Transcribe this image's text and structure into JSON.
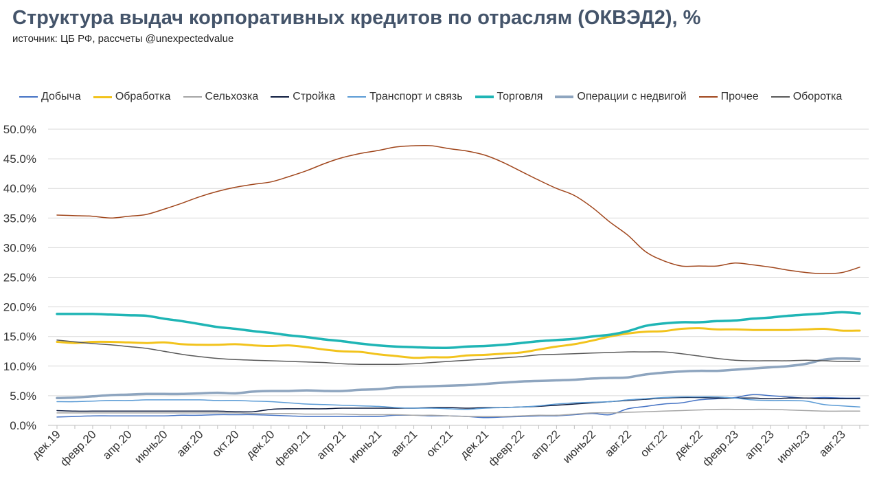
{
  "title": "Структура выдач корпоративных кредитов по отраслям (ОКВЭД2), %",
  "subtitle": "источник: ЦБ РФ, рассчеты @unexpectedvalue",
  "chart_data": {
    "type": "line",
    "title": "Структура выдач корпоративных кредитов по отраслям (ОКВЭД2), %",
    "subtitle": "источник: ЦБ РФ, рассчеты @unexpectedvalue",
    "xlabel": "",
    "ylabel": "",
    "ylim": [
      0,
      50
    ],
    "y_ticks": [
      0,
      5,
      10,
      15,
      20,
      25,
      30,
      35,
      40,
      45,
      50
    ],
    "y_tick_labels": [
      "0.0%",
      "5.0%",
      "10.0%",
      "15.0%",
      "20.0%",
      "25.0%",
      "30.0%",
      "35.0%",
      "40.0%",
      "45.0%",
      "50.0%"
    ],
    "grid": true,
    "legend_position": "top",
    "x": [
      "дек.19",
      "янв.20",
      "февр.20",
      "март.20",
      "апр.20",
      "май.20",
      "июнь20",
      "июль.20",
      "авг.20",
      "сент.20",
      "окт.20",
      "нояб.20",
      "дек.20",
      "янв.21",
      "февр.21",
      "март.21",
      "апр.21",
      "май.21",
      "июнь21",
      "июль.21",
      "авг.21",
      "сент.21",
      "окт.21",
      "нояб.21",
      "дек.21",
      "янв.22",
      "февр.22",
      "март.22",
      "апр.22",
      "май.22",
      "июнь22",
      "июль.22",
      "авг.22",
      "сент.22",
      "окт.22",
      "нояб.22",
      "дек.22",
      "янв.23",
      "февр.23",
      "март.23",
      "апр.23",
      "май.23",
      "июнь23",
      "июль.23",
      "авг.23",
      "сент.23"
    ],
    "x_tick_labels": [
      "дек.19",
      "февр.20",
      "апр.20",
      "июнь20",
      "авг.20",
      "окт.20",
      "дек.20",
      "февр.21",
      "апр.21",
      "июнь21",
      "авг.21",
      "окт.21",
      "дек.21",
      "февр.22",
      "апр.22",
      "июнь22",
      "авг.22",
      "окт.22",
      "дек.22",
      "февр.23",
      "апр.23",
      "июнь23",
      "авг.23"
    ],
    "series": [
      {
        "name": "Добыча",
        "color": "#4472c4",
        "width": 1.5,
        "values": [
          1.4,
          1.5,
          1.6,
          1.6,
          1.6,
          1.6,
          1.6,
          1.7,
          1.7,
          1.8,
          1.8,
          1.8,
          1.7,
          1.6,
          1.5,
          1.5,
          1.5,
          1.5,
          1.5,
          1.7,
          1.7,
          1.6,
          1.6,
          1.5,
          1.3,
          1.4,
          1.5,
          1.6,
          1.6,
          1.8,
          2.0,
          1.8,
          2.8,
          3.2,
          3.6,
          3.8,
          4.3,
          4.5,
          4.7,
          5.2,
          5.0,
          4.8,
          4.6,
          4.7,
          4.6,
          4.6
        ]
      },
      {
        "name": "Обработка",
        "color": "#f2c31c",
        "width": 3,
        "values": [
          14.1,
          13.9,
          14.1,
          14.1,
          14.0,
          13.9,
          14.0,
          13.7,
          13.6,
          13.6,
          13.7,
          13.5,
          13.4,
          13.5,
          13.2,
          12.8,
          12.5,
          12.4,
          12.0,
          11.7,
          11.4,
          11.5,
          11.5,
          11.8,
          11.9,
          12.1,
          12.3,
          12.8,
          13.3,
          13.7,
          14.3,
          15.0,
          15.5,
          15.8,
          15.9,
          16.3,
          16.4,
          16.2,
          16.2,
          16.1,
          16.1,
          16.1,
          16.2,
          16.3,
          16.0,
          16.0
        ]
      },
      {
        "name": "Сельхозка",
        "color": "#a5a5a5",
        "width": 1.5,
        "values": [
          2.1,
          2.1,
          2.1,
          2.1,
          2.1,
          2.1,
          2.1,
          2.1,
          2.1,
          2.1,
          2.1,
          2.0,
          2.0,
          2.0,
          1.9,
          1.9,
          1.9,
          1.8,
          1.8,
          1.8,
          1.7,
          1.7,
          1.6,
          1.5,
          1.5,
          1.5,
          1.6,
          1.7,
          1.7,
          1.9,
          2.1,
          2.1,
          2.2,
          2.3,
          2.4,
          2.5,
          2.6,
          2.7,
          2.7,
          2.7,
          2.7,
          2.6,
          2.5,
          2.4,
          2.4,
          2.4
        ]
      },
      {
        "name": "Стройка",
        "color": "#0d1b3e",
        "width": 1.5,
        "values": [
          2.5,
          2.4,
          2.4,
          2.4,
          2.4,
          2.4,
          2.4,
          2.4,
          2.4,
          2.4,
          2.3,
          2.3,
          2.7,
          2.8,
          2.8,
          2.8,
          2.9,
          2.9,
          2.9,
          2.9,
          2.9,
          3.0,
          3.0,
          2.9,
          3.0,
          3.0,
          3.1,
          3.2,
          3.4,
          3.6,
          3.8,
          4.0,
          4.2,
          4.4,
          4.6,
          4.7,
          4.7,
          4.6,
          4.6,
          4.6,
          4.5,
          4.6,
          4.6,
          4.5,
          4.5,
          4.5
        ]
      },
      {
        "name": "Транспорт и связь",
        "color": "#5b9bd5",
        "width": 1.5,
        "values": [
          4.0,
          4.0,
          4.1,
          4.2,
          4.2,
          4.3,
          4.3,
          4.3,
          4.3,
          4.2,
          4.2,
          4.1,
          4.0,
          3.8,
          3.6,
          3.5,
          3.4,
          3.3,
          3.2,
          3.0,
          2.9,
          2.9,
          2.8,
          2.7,
          2.9,
          3.0,
          3.1,
          3.3,
          3.6,
          3.8,
          3.9,
          4.0,
          4.3,
          4.5,
          4.7,
          4.8,
          4.8,
          4.8,
          4.6,
          4.3,
          4.2,
          4.2,
          4.1,
          3.5,
          3.3,
          3.1
        ]
      },
      {
        "name": "Торговля",
        "color": "#1fb5b5",
        "width": 3.5,
        "values": [
          18.8,
          18.8,
          18.8,
          18.7,
          18.6,
          18.5,
          18.0,
          17.6,
          17.1,
          16.6,
          16.3,
          15.9,
          15.6,
          15.2,
          14.9,
          14.5,
          14.2,
          13.8,
          13.5,
          13.3,
          13.2,
          13.1,
          13.1,
          13.3,
          13.4,
          13.6,
          13.9,
          14.2,
          14.4,
          14.6,
          15.0,
          15.3,
          15.9,
          16.8,
          17.2,
          17.4,
          17.4,
          17.6,
          17.7,
          18.0,
          18.2,
          18.5,
          18.7,
          18.9,
          19.1,
          18.9
        ]
      },
      {
        "name": "Операции с недвигой",
        "color": "#8ea5bf",
        "width": 3.5,
        "values": [
          4.6,
          4.7,
          4.9,
          5.1,
          5.2,
          5.3,
          5.3,
          5.3,
          5.4,
          5.5,
          5.4,
          5.7,
          5.8,
          5.8,
          5.9,
          5.8,
          5.8,
          6.0,
          6.1,
          6.4,
          6.5,
          6.6,
          6.7,
          6.8,
          7.0,
          7.2,
          7.4,
          7.5,
          7.6,
          7.7,
          7.9,
          8.0,
          8.1,
          8.6,
          8.9,
          9.1,
          9.2,
          9.2,
          9.4,
          9.6,
          9.8,
          10.0,
          10.4,
          11.1,
          11.3,
          11.2
        ]
      },
      {
        "name": "Прочее",
        "color": "#a0461c",
        "width": 1.5,
        "values": [
          35.5,
          35.4,
          35.3,
          35.0,
          35.3,
          35.6,
          36.5,
          37.5,
          38.6,
          39.5,
          40.2,
          40.7,
          41.1,
          42.0,
          43.0,
          44.2,
          45.2,
          45.9,
          46.4,
          47.0,
          47.2,
          47.2,
          46.7,
          46.3,
          45.6,
          44.4,
          42.9,
          41.4,
          40.0,
          38.8,
          36.8,
          34.3,
          32.1,
          29.3,
          27.8,
          26.9,
          26.9,
          26.9,
          27.4,
          27.1,
          26.7,
          26.2,
          25.8,
          25.6,
          25.8,
          26.7
        ]
      },
      {
        "name": "Оборотка",
        "color": "#595959",
        "width": 1.5,
        "values": [
          14.4,
          14.1,
          13.8,
          13.6,
          13.3,
          13.0,
          12.5,
          12.0,
          11.6,
          11.3,
          11.1,
          11.0,
          10.9,
          10.8,
          10.7,
          10.6,
          10.4,
          10.3,
          10.3,
          10.3,
          10.4,
          10.6,
          10.8,
          11.0,
          11.2,
          11.4,
          11.6,
          11.9,
          12.0,
          12.1,
          12.2,
          12.3,
          12.4,
          12.4,
          12.4,
          12.1,
          11.7,
          11.3,
          11.0,
          10.9,
          10.9,
          10.9,
          11.0,
          10.9,
          10.8,
          10.8
        ]
      }
    ]
  }
}
